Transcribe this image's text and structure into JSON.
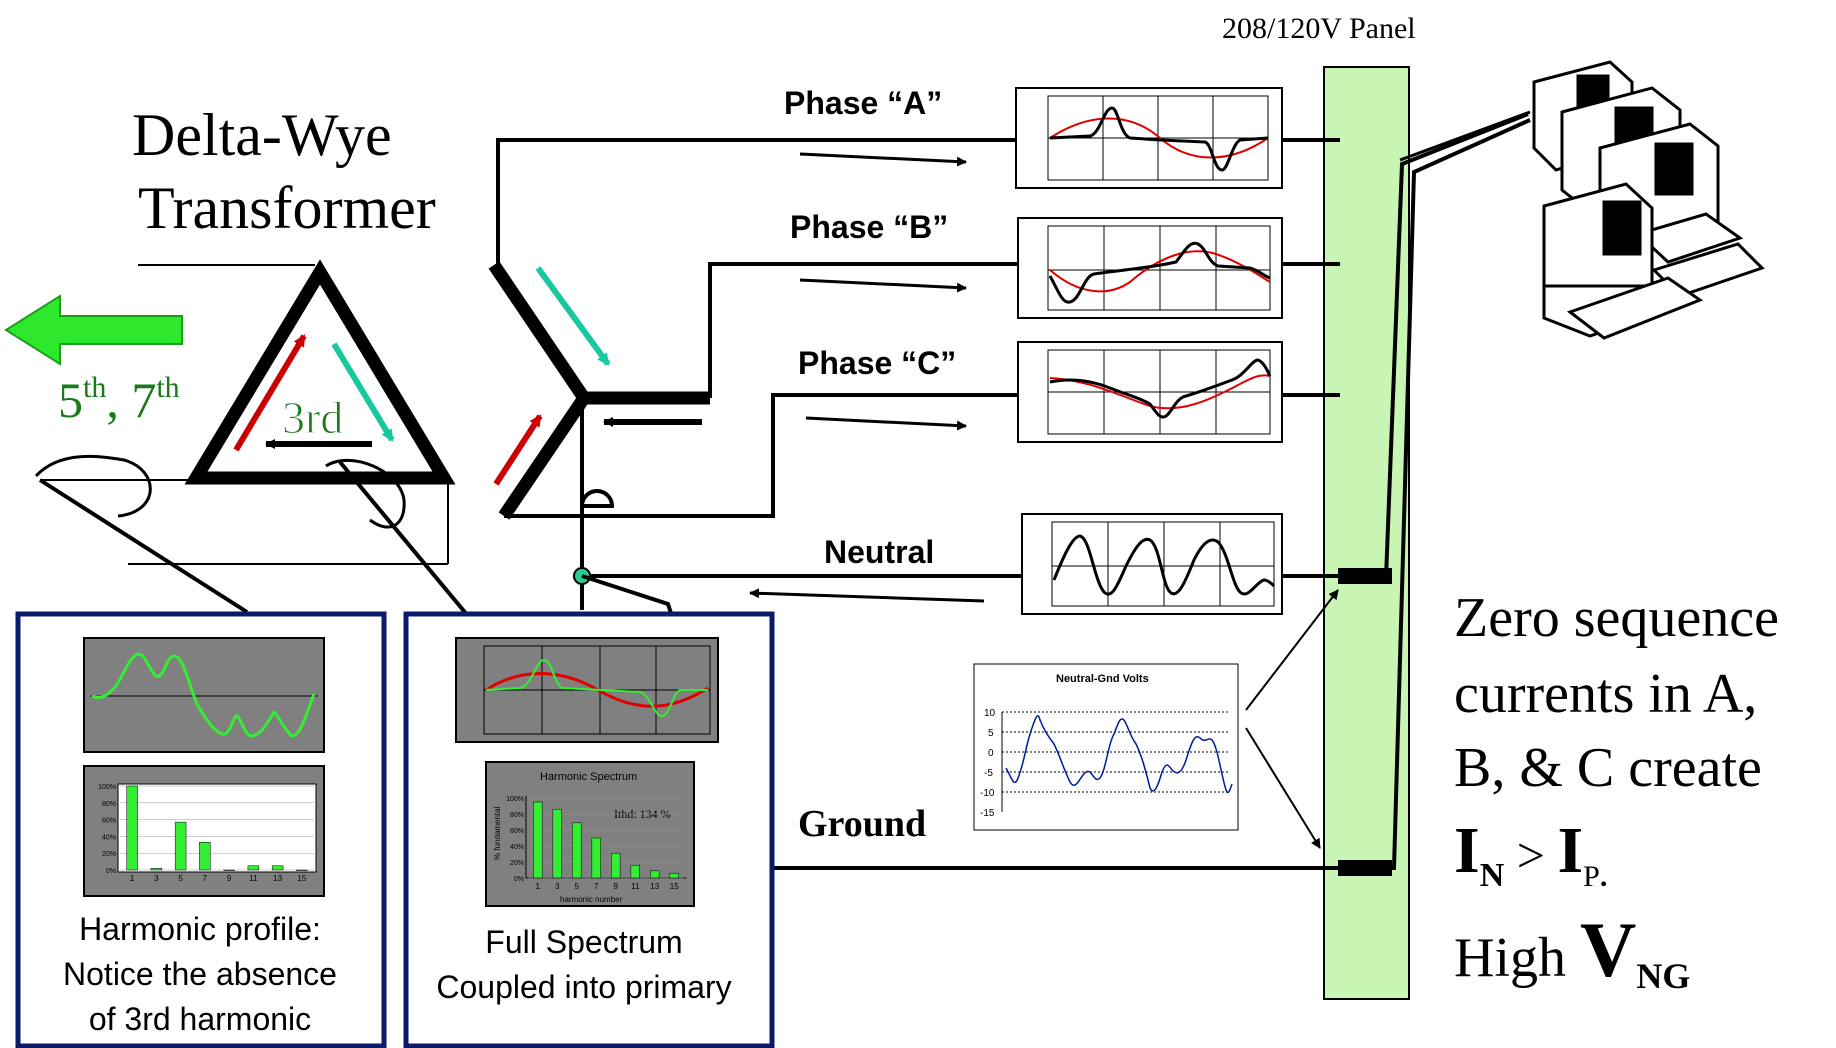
{
  "panel_label": "208/120V Panel",
  "transformer": {
    "line1": "Delta-Wye",
    "line2": "Transformer"
  },
  "harmonics_out": {
    "fifth": "5",
    "fifth_sup": "th",
    "sep": ", ",
    "seventh": "7",
    "seventh_sup": "th"
  },
  "delta_label": "3rd",
  "phases": [
    {
      "name": "Phase “A”"
    },
    {
      "name": "Phase “B”"
    },
    {
      "name": "Phase “C”"
    }
  ],
  "neutral_label": "Neutral",
  "ground_label": "Ground",
  "ng_chart": {
    "title": "Neutral-Gnd Volts",
    "y_ticks": [
      "10",
      "5",
      "0",
      "-5",
      "-10",
      "-15"
    ],
    "ylim": [
      -15,
      10
    ]
  },
  "left_panel": {
    "caption": [
      "Harmonic profile:",
      "Notice the absence",
      "of  3rd harmonic"
    ],
    "spectrum": {
      "type": "bar",
      "categories": [
        "1",
        "3",
        "5",
        "7",
        "9",
        "11",
        "13",
        "15"
      ],
      "values": [
        100,
        2,
        57,
        33,
        0,
        5,
        5,
        0
      ],
      "y_ticks": [
        "100%",
        "80%",
        "60%",
        "40%",
        "20%",
        "0%"
      ]
    }
  },
  "mid_panel": {
    "caption": [
      "Full Spectrum",
      "Coupled into primary"
    ],
    "spectrum": {
      "type": "bar",
      "title": "Harmonic Spectrum",
      "annotation": "Ithd: 134 %",
      "xlabel": "harmonic number",
      "ylabel": "% fundamental",
      "categories": [
        "1",
        "3",
        "5",
        "7",
        "9",
        "11",
        "13",
        "15"
      ],
      "values": [
        95,
        86,
        69,
        50,
        31,
        16,
        9,
        6
      ],
      "y_ticks": [
        "100%",
        "80%",
        "60%",
        "40%",
        "20%",
        "0%"
      ]
    }
  },
  "right_text": {
    "line1": "Zero sequence",
    "line2": "currents in A,",
    "line3": "B, & C create",
    "i_n": "I",
    "i_n_sub": "N",
    "gt": " > ",
    "i_p": "I",
    "i_p_sub": "P",
    "dot": ".",
    "high": "High ",
    "v": "V",
    "v_sub": "NG"
  },
  "colors": {
    "green_arrow": "#2ee82e",
    "panel_fill": "#c8f5b4",
    "red_wave": "#e00000",
    "green_wave": "#33ee33",
    "teal_arrow": "#19c8a0",
    "box_border": "#0b1a6b",
    "plot_bg": "#808080",
    "ng_wave": "#001a99",
    "label_green": "#1a7a1a"
  },
  "chart_data": [
    {
      "type": "bar",
      "title": "",
      "categories": [
        "1",
        "3",
        "5",
        "7",
        "9",
        "11",
        "13",
        "15"
      ],
      "values": [
        100,
        2,
        57,
        33,
        0,
        5,
        5,
        0
      ],
      "xlabel": "",
      "ylabel": "",
      "ylim": [
        0,
        100
      ]
    },
    {
      "type": "bar",
      "title": "Harmonic Spectrum",
      "categories": [
        "1",
        "3",
        "5",
        "7",
        "9",
        "11",
        "13",
        "15"
      ],
      "values": [
        95,
        86,
        69,
        50,
        31,
        16,
        9,
        6
      ],
      "xlabel": "harmonic number",
      "ylabel": "% fundamental",
      "ylim": [
        0,
        100
      ]
    }
  ]
}
